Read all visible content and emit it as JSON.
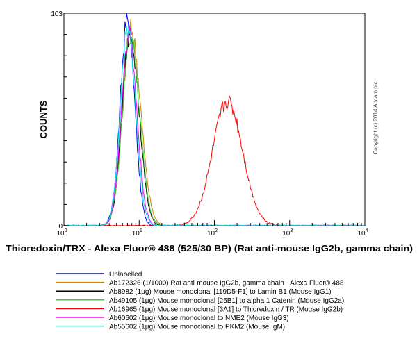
{
  "chart_data": {
    "type": "line",
    "title": "",
    "xlabel": "Thioredoxin/TRX - Alexa Fluor® 488 (525/30 BP) (Rat anti-mouse IgG2b, gamma chain)",
    "ylabel": "COUNTS",
    "x_scale": "log",
    "xlim": [
      1,
      10000
    ],
    "ylim": [
      0,
      103
    ],
    "x_ticks": [
      {
        "value": 1,
        "base": "10",
        "exp": "0"
      },
      {
        "value": 10,
        "base": "10",
        "exp": "1"
      },
      {
        "value": 100,
        "base": "10",
        "exp": "2"
      },
      {
        "value": 1000,
        "base": "10",
        "exp": "3"
      },
      {
        "value": 10000,
        "base": "10",
        "exp": "4"
      }
    ],
    "y_ticks": [
      {
        "value": 0,
        "label": "0"
      },
      {
        "value": 103,
        "label": "103"
      }
    ],
    "copyright": "Copyright (c) 2014 Abcam plc",
    "legend_position": "bottom",
    "series": [
      {
        "name": "Unlabelled",
        "color": "#0000ff",
        "peak_x": 7.0,
        "peak_y": 100,
        "width": 0.095,
        "skew": 1.0
      },
      {
        "name": "Ab172326 (1/1000) Rat anti-mouse IgG2b, gamma chain - Alexa Fluor® 488",
        "color": "#cc8800",
        "peak_x": 7.8,
        "peak_y": 95,
        "width": 0.11,
        "skew": 1.15
      },
      {
        "name": "Ab8982 (1μg) Mouse monoclonal [119D5-F1] to Lamin B1 (Mouse IgG1)",
        "color": "#000000",
        "peak_x": 7.6,
        "peak_y": 94,
        "width": 0.105,
        "skew": 1.1
      },
      {
        "name": "Ab49105 (1μg) Mouse monoclonal [25B1] to alpha 1 Catenin (Mouse IgG2a)",
        "color": "#33cc33",
        "peak_x": 7.7,
        "peak_y": 92,
        "width": 0.108,
        "skew": 1.1
      },
      {
        "name": "Ab16965 (1μg) Mouse monoclonal [3A1] to Thioredoxin / TR (Mouse IgG2b)",
        "color": "#ff0000",
        "peak_x": 150,
        "peak_y": 60,
        "width": 0.2,
        "skew": 1.0
      },
      {
        "name": "Ab60602 (1μg) Mouse monoclonal to NME2 (Mouse IgG3)",
        "color": "#ff00ff",
        "peak_x": 7.3,
        "peak_y": 93,
        "width": 0.1,
        "skew": 1.05
      },
      {
        "name": "Ab55602 (1μg) Mouse monoclonal to PKM2 (Mouse IgM)",
        "color": "#00e5e5",
        "peak_x": 7.1,
        "peak_y": 96,
        "width": 0.098,
        "skew": 1.05
      }
    ]
  }
}
